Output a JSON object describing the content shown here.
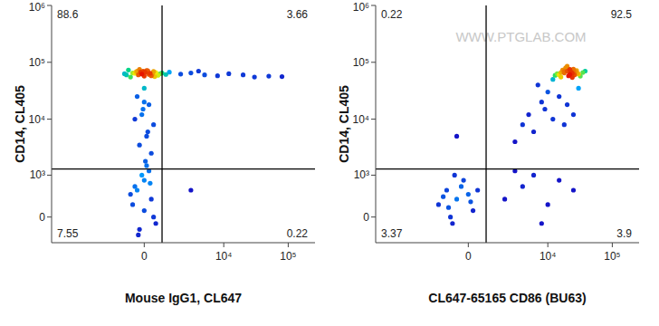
{
  "chart_data": [
    {
      "type": "scatter",
      "xlabel": "Mouse IgG1, CL647",
      "ylabel": "CD14, CL405",
      "log": true,
      "xlim": [
        -16000,
        260000
      ],
      "ylim": [
        -470,
        1000000
      ],
      "xticks": [
        0,
        {
          "value": 10000,
          "label": "10⁴"
        },
        {
          "value": 100000,
          "label": "10⁵"
        }
      ],
      "yticks": [
        0,
        {
          "value": 1000,
          "label": "10³"
        },
        {
          "value": 10000,
          "label": "10⁴"
        },
        {
          "value": 100000,
          "label": "10⁵"
        },
        {
          "value": 1000000,
          "label": "10⁶"
        }
      ],
      "gate": {
        "x": 800,
        "y": 1300
      },
      "quadrants": {
        "UL": 88.6,
        "UR": 3.66,
        "LL": 7.55,
        "LR": 0.22
      },
      "x": [
        -800,
        -500,
        -300,
        -100,
        0,
        100,
        300,
        500,
        700,
        -600,
        -200,
        200,
        400,
        -400,
        0,
        150,
        -150,
        600,
        -700,
        250,
        -250,
        50,
        -50,
        350,
        -350,
        450,
        800,
        -900,
        1000,
        1200,
        2000,
        3000,
        5000,
        8000,
        12000,
        20000,
        30000,
        50000,
        80000,
        4000,
        0,
        -300,
        200,
        -100,
        400,
        100,
        -200,
        300,
        0,
        -400,
        150,
        -50,
        -500,
        -300,
        0,
        200,
        400,
        -200,
        100,
        300,
        -400,
        -100,
        500,
        0,
        -600,
        250,
        -250,
        50,
        3000
      ],
      "values": [
        60000,
        65000,
        70000,
        62000,
        68000,
        72000,
        58000,
        66000,
        63000,
        55000,
        75000,
        61000,
        69000,
        64000,
        57000,
        71000,
        67000,
        59000,
        73000,
        64000,
        60000,
        66000,
        70000,
        62000,
        68000,
        56000,
        65000,
        63000,
        61000,
        67000,
        62000,
        65000,
        60000,
        58000,
        63000,
        60000,
        55000,
        57000,
        56000,
        70000,
        35000,
        25000,
        18000,
        12000,
        8000,
        5000,
        3500,
        2500,
        20000,
        10000,
        6000,
        15000,
        200,
        500,
        800,
        1200,
        0,
        -200,
        1500,
        300,
        600,
        1000,
        -100,
        100,
        400,
        700,
        -300,
        1800,
        500
      ]
    },
    {
      "type": "scatter",
      "xlabel": "CL647-65165 CD86 (BU63)",
      "ylabel": "CD14, CL405",
      "log": true,
      "watermark": "WWW.PTGLAB.COM",
      "xlim": [
        -16000,
        260000
      ],
      "ylim": [
        -470,
        1000000
      ],
      "xticks": [
        0,
        {
          "value": 10000,
          "label": "10⁴"
        },
        {
          "value": 100000,
          "label": "10⁵"
        }
      ],
      "yticks": [
        0,
        {
          "value": 1000,
          "label": "10³"
        },
        {
          "value": 10000,
          "label": "10⁴"
        },
        {
          "value": 100000,
          "label": "10⁵"
        },
        {
          "value": 1000000,
          "label": "10⁶"
        }
      ],
      "gate": {
        "x": 800,
        "y": 1300
      },
      "quadrants": {
        "UL": 0.22,
        "UR": 92.5,
        "LL": 3.37,
        "LR": 3.9
      },
      "x": [
        12000,
        15000,
        18000,
        20000,
        22000,
        25000,
        28000,
        30000,
        35000,
        16000,
        19000,
        21000,
        24000,
        27000,
        14000,
        17000,
        23000,
        26000,
        32000,
        20000,
        18000,
        22000,
        25000,
        13000,
        29000,
        21000,
        16000,
        24000,
        19000,
        38000,
        3000,
        4000,
        5000,
        6000,
        8000,
        9000,
        10000,
        12000,
        15000,
        20000,
        25000,
        30000,
        7000,
        18000,
        -1500,
        -1000,
        -800,
        -500,
        -300,
        0,
        200,
        -700,
        -1200,
        -200,
        100,
        -600,
        -900,
        400,
        2000,
        4000,
        6000,
        10000,
        15000,
        25000,
        8000,
        3000,
        -500
      ],
      "values": [
        50000,
        60000,
        65000,
        70000,
        75000,
        68000,
        72000,
        62000,
        66000,
        55000,
        80000,
        58000,
        64000,
        70000,
        63000,
        73000,
        67000,
        60000,
        57000,
        85000,
        69000,
        61000,
        76000,
        59000,
        64000,
        71000,
        66000,
        54000,
        78000,
        70000,
        4000,
        8000,
        12000,
        6000,
        20000,
        15000,
        30000,
        10000,
        25000,
        18000,
        12000,
        35000,
        40000,
        8000,
        200,
        500,
        0,
        300,
        600,
        400,
        100,
        -100,
        350,
        800,
        250,
        1000,
        150,
        500,
        300,
        600,
        1000,
        200,
        800,
        500,
        -100,
        1200,
        5000
      ]
    }
  ]
}
